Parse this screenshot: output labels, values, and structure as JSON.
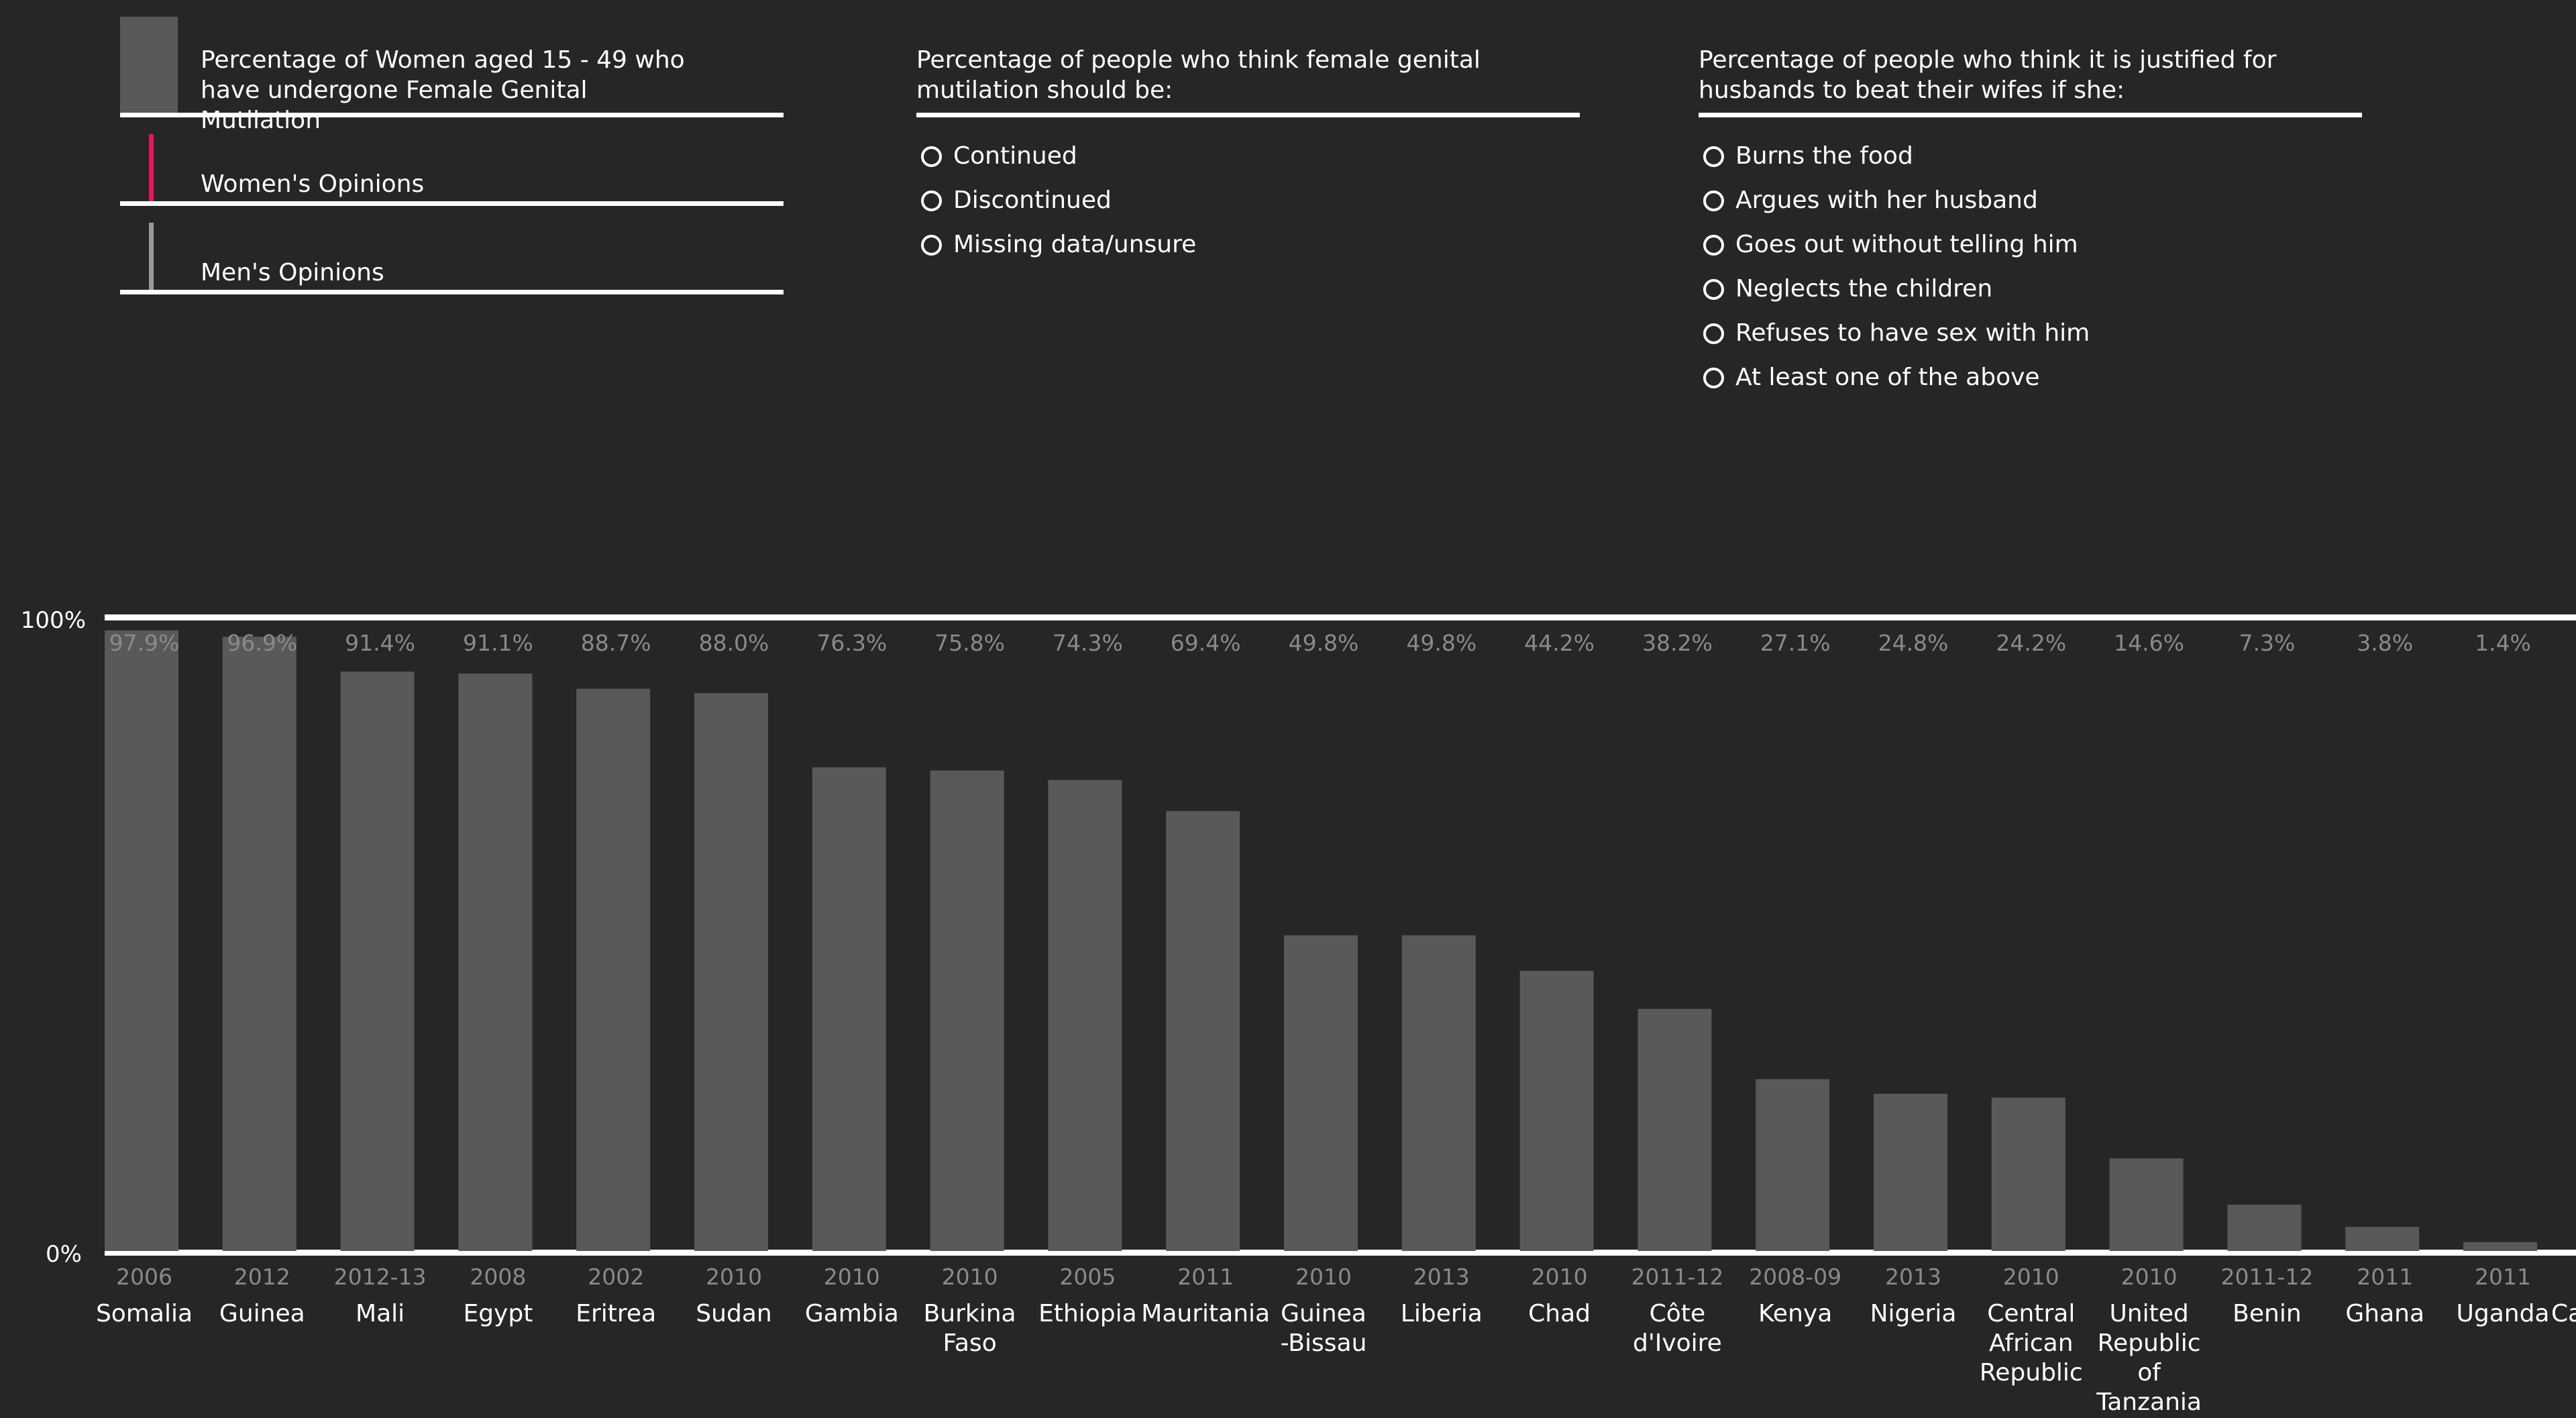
{
  "legend": {
    "fgm_prevalence": "Percentage of Women aged 15 - 49 who have undergone Female Genital Mutilation",
    "womens_opinions": "Women's Opinions",
    "mens_opinions": "Men's Opinions",
    "colors": {
      "bar": "#595959",
      "women": "#e8165a",
      "men": "#9a9a9a",
      "background": "#262626",
      "year": "#8a8a8a"
    }
  },
  "filters": {
    "fgm_opinion": {
      "title": "Percentage of people who think female genital mutilation should be:",
      "options": [
        "Continued",
        "Discontinued",
        "Missing data/unsure"
      ]
    },
    "wife_beating": {
      "title": "Percentage of people who think it is justified for husbands to beat their wifes if she:",
      "options": [
        "Burns the food",
        "Argues with her husband",
        "Goes out without telling him",
        "Neglects the children",
        "Refuses to have sex with him",
        "At least one of the above"
      ]
    }
  },
  "chart_data": {
    "type": "bar",
    "title": "",
    "xlabel": "",
    "ylabel": "",
    "ylim": [
      0,
      100
    ],
    "yticks": [
      "100%",
      "0%"
    ],
    "grid": false,
    "categories": [
      "Somalia",
      "Guinea",
      "Mali",
      "Egypt",
      "Eritrea",
      "Sudan",
      "Gambia",
      "Burkina Faso",
      "Ethiopia",
      "Mauritania",
      "Guinea -Bissau",
      "Liberia",
      "Chad",
      "Côte d'Ivoire",
      "Kenya",
      "Nigeria",
      "Central African Republic",
      "United Republic of Tanzania",
      "Benin",
      "Ghana",
      "Uganda",
      "Ca"
    ],
    "years": [
      "2006",
      "2012",
      "2012-13",
      "2008",
      "2002",
      "2010",
      "2010",
      "2010",
      "2005",
      "2011",
      "2010",
      "2013",
      "2010",
      "2011-12",
      "2008-09",
      "2013",
      "2010",
      "2010",
      "2011-12",
      "2011",
      "2011",
      ""
    ],
    "values": [
      97.9,
      96.9,
      91.4,
      91.1,
      88.7,
      88.0,
      76.3,
      75.8,
      74.3,
      69.4,
      49.8,
      49.8,
      44.2,
      38.2,
      27.1,
      24.8,
      24.2,
      14.6,
      7.3,
      3.8,
      1.4,
      null
    ],
    "value_labels": [
      "97.9%",
      "96.9%",
      "91.4%",
      "91.1%",
      "88.7%",
      "88.0%",
      "76.3%",
      "75.8%",
      "74.3%",
      "69.4%",
      "49.8%",
      "49.8%",
      "44.2%",
      "38.2%",
      "27.1%",
      "24.8%",
      "24.2%",
      "14.6%",
      "7.3%",
      "3.8%",
      "1.4%",
      ""
    ]
  }
}
